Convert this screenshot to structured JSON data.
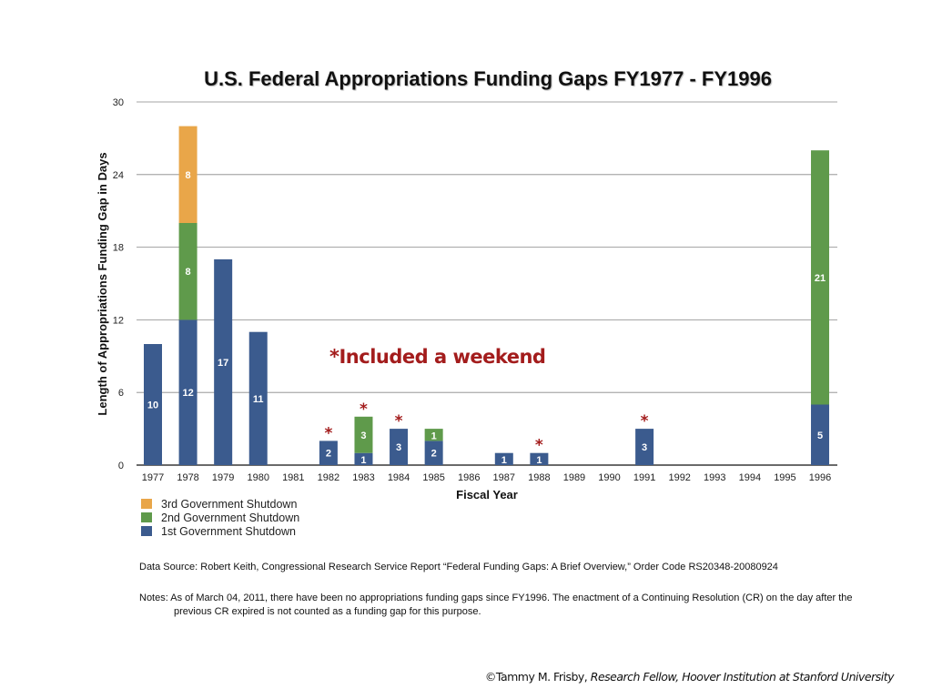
{
  "chart_data": {
    "type": "bar",
    "stacked": true,
    "title": "U.S. Federal Appropriations Funding Gaps FY1977 - FY1996",
    "xlabel": "Fiscal Year",
    "ylabel": "Length of Appropriations Funding Gap in Days",
    "ylim": [
      0,
      30
    ],
    "yticks": [
      0,
      6,
      12,
      18,
      24,
      30
    ],
    "grid": true,
    "legend_position": "bottom-left",
    "categories": [
      "1977",
      "1978",
      "1979",
      "1980",
      "1981",
      "1982",
      "1983",
      "1984",
      "1985",
      "1986",
      "1987",
      "1988",
      "1989",
      "1990",
      "1991",
      "1992",
      "1993",
      "1994",
      "1995",
      "1996"
    ],
    "series": [
      {
        "name": "1st Government Shutdown",
        "color": "#3b5b8e",
        "values": [
          10,
          12,
          17,
          11,
          0,
          2,
          1,
          3,
          2,
          0,
          1,
          1,
          0,
          0,
          3,
          0,
          0,
          0,
          0,
          5
        ]
      },
      {
        "name": "2nd Government Shutdown",
        "color": "#5f9a4b",
        "values": [
          0,
          8,
          0,
          0,
          0,
          0,
          3,
          0,
          1,
          0,
          0,
          0,
          0,
          0,
          0,
          0,
          0,
          0,
          0,
          21
        ]
      },
      {
        "name": "3rd Government Shutdown",
        "color": "#e9a649",
        "values": [
          0,
          8,
          0,
          0,
          0,
          0,
          0,
          0,
          0,
          0,
          0,
          0,
          0,
          0,
          0,
          0,
          0,
          0,
          0,
          0
        ]
      }
    ],
    "included_weekend": [
      "1982",
      "1983",
      "1984",
      "1988",
      "1991"
    ],
    "annotation": "*Included a weekend",
    "annotation_color": "#a31c1c"
  },
  "footer": {
    "source": "Data Source: Robert Keith, Congressional Research Service Report “Federal Funding Gaps: A Brief Overview,” Order Code RS20348-20080924",
    "notes": "Notes: As of March 04, 2011, there have been no appropriations funding gaps since FY1996. The enactment of a Continuing Resolution (CR) on the day after the previous CR expired is not counted as a funding gap for this purpose.",
    "credit_name": "©Tammy M. Frisby,",
    "credit_affiliation": "Research Fellow, Hoover Institution at Stanford University"
  }
}
